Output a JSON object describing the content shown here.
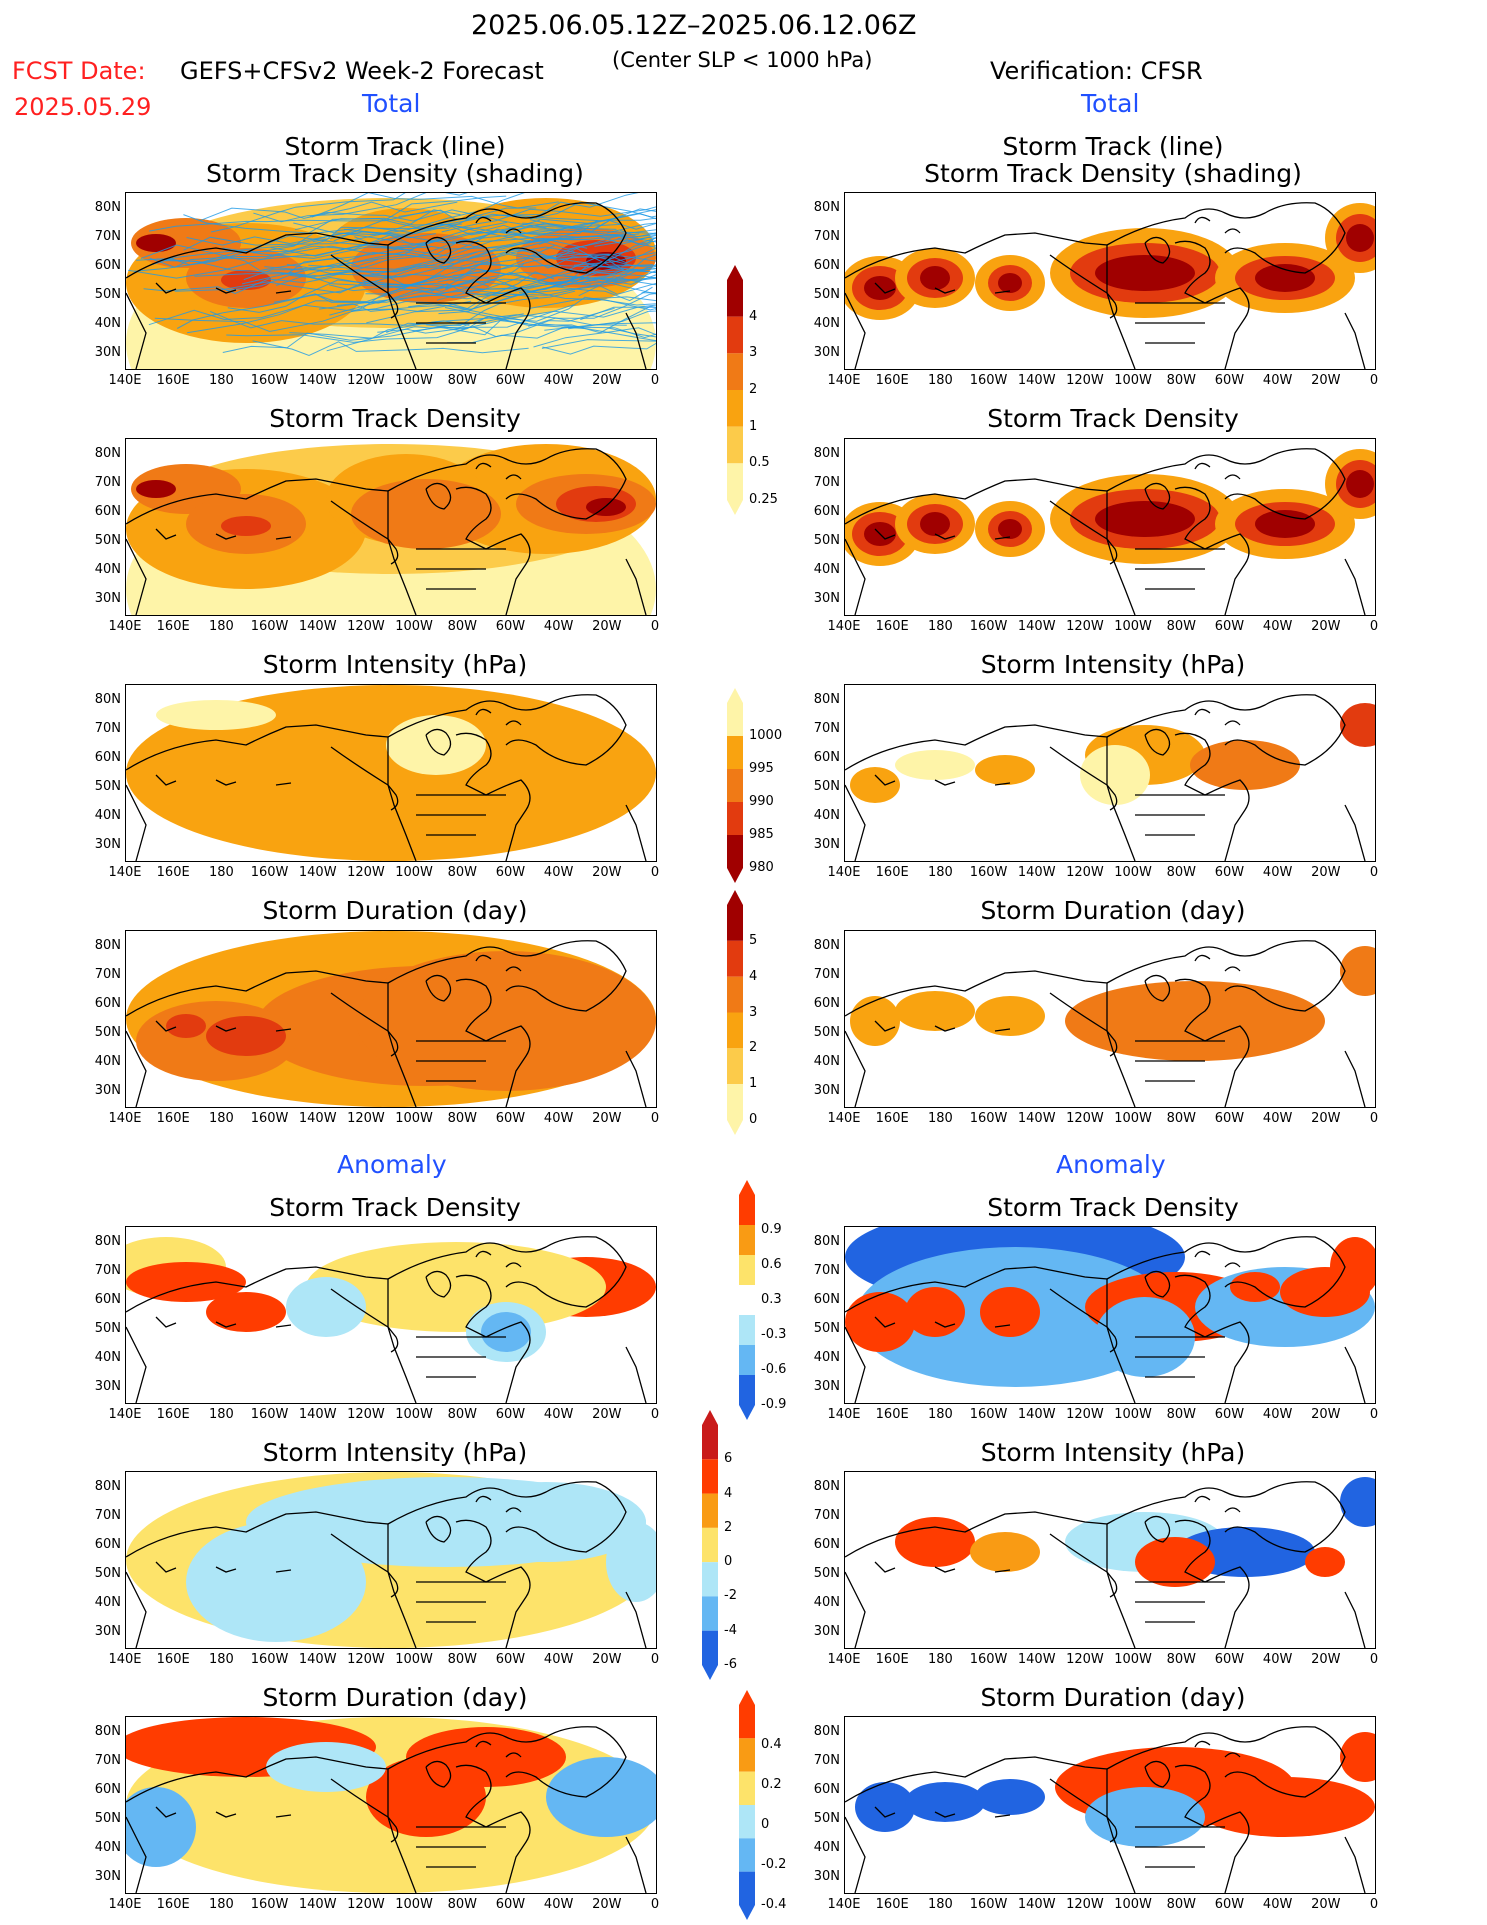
{
  "header": {
    "period": "2025.06.05.12Z–2025.06.12.06Z",
    "fcst_label": "FCST Date:",
    "fcst_date": "2025.05.29",
    "model": "GEFS+CFSv2 Week-2 Forecast",
    "criterion": "(Center SLP < 1000 hPa)",
    "verification": "Verification: CFSR"
  },
  "section_labels": {
    "total": "Total",
    "anomaly": "Anomaly"
  },
  "panel_titles": {
    "track_line": "Storm Track (line)",
    "track_shading": "Storm Track Density (shading)",
    "density": "Storm Track Density",
    "intensity": "Storm Intensity (hPa)",
    "duration": "Storm Duration (day)"
  },
  "axes": {
    "lat": [
      "80N",
      "70N",
      "60N",
      "50N",
      "40N",
      "30N"
    ],
    "lon": [
      "140E",
      "160E",
      "180",
      "160W",
      "140W",
      "120W",
      "100W",
      "80W",
      "60W",
      "40W",
      "20W",
      "0"
    ]
  },
  "colorbars": {
    "density_total": {
      "labels": [
        "4",
        "3",
        "2",
        "1",
        "0.5",
        "0.25"
      ],
      "colors": [
        "#a00000",
        "#e23b0f",
        "#f07a16",
        "#f9a310",
        "#fccb4a",
        "#fef4a8"
      ]
    },
    "intensity_total": {
      "labels": [
        "1000",
        "995",
        "990",
        "985",
        "980"
      ],
      "colors": [
        "#fef4a8",
        "#f9a310",
        "#f07a16",
        "#e23b0f",
        "#a00000"
      ]
    },
    "duration_total": {
      "labels": [
        "5",
        "4",
        "3",
        "2",
        "1",
        "0"
      ],
      "colors": [
        "#a00000",
        "#e23b0f",
        "#f07a16",
        "#f9a310",
        "#fccb4a",
        "#fef4a8"
      ]
    },
    "density_anom": {
      "labels": [
        "0.9",
        "0.6",
        "0.3",
        "-0.3",
        "-0.6",
        "-0.9"
      ],
      "colors": [
        "#ff3c00",
        "#f99b14",
        "#fde36a",
        "#ffffff",
        "#aee6f7",
        "#64b7f3",
        "#2164e1"
      ]
    },
    "intensity_anom": {
      "labels": [
        "6",
        "4",
        "2",
        "0",
        "-2",
        "-4",
        "-6"
      ],
      "colors": [
        "#c91a1a",
        "#ff3c00",
        "#f99b14",
        "#fde36a",
        "#aee6f7",
        "#64b7f3",
        "#2164e1"
      ]
    },
    "duration_anom": {
      "labels": [
        "0.4",
        "0.2",
        "0",
        "-0.2",
        "-0.4"
      ],
      "colors": [
        "#ff3c00",
        "#f99b14",
        "#fde36a",
        "#aee6f7",
        "#64b7f3",
        "#2164e1"
      ]
    }
  }
}
